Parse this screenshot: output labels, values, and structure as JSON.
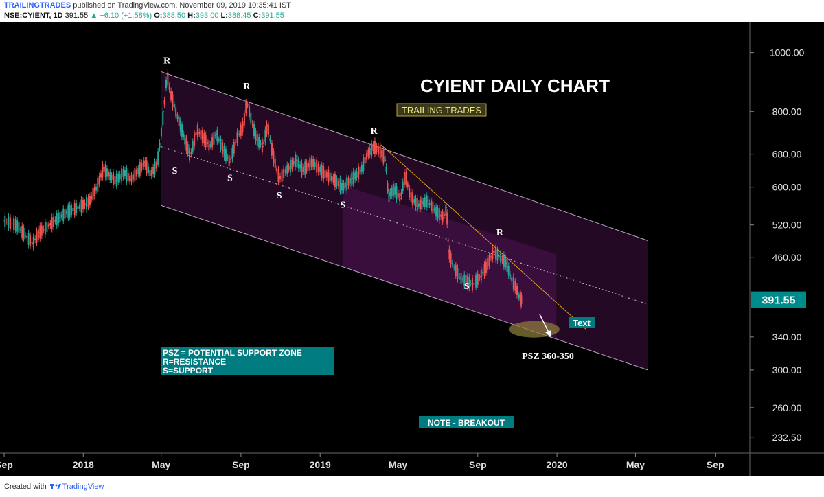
{
  "header": {
    "publisher_brand": "TRAILINGTRADES",
    "publisher_text": "published on TradingView.com, November 09, 2019 10:35:41 IST",
    "symbol": "NSE:CYIENT, 1D",
    "last": "391.55",
    "change_arrow": "▲",
    "change": "+6.10 (+1.58%)",
    "open_label": "O:",
    "open": "388.50",
    "high_label": "H:",
    "high": "393.00",
    "low_label": "L:",
    "low": "388.45",
    "close_label": "C:",
    "close": "391.55"
  },
  "chart_data": {
    "type": "line",
    "title": "CYIENT DAILY CHART",
    "subtitle": "TRAILING TRADES",
    "symbol": "NSE:CYIENT",
    "interval": "1D",
    "y_scale": "log",
    "ylim": [
      220,
      1100
    ],
    "y_ticks": [
      "1000.00",
      "800.00",
      "680.00",
      "600.00",
      "520.00",
      "460.00",
      "340.00",
      "300.00",
      "260.00",
      "232.50"
    ],
    "y_tick_values": [
      1000,
      800,
      680,
      600,
      520,
      460,
      340,
      300,
      260,
      232.5
    ],
    "x_ticks": [
      "Sep",
      "2018",
      "May",
      "Sep",
      "2019",
      "May",
      "Sep",
      "2020",
      "May",
      "Sep"
    ],
    "x_tick_dates": [
      "2017-09",
      "2018-01",
      "2018-05",
      "2018-09",
      "2019-01",
      "2019-05",
      "2019-09",
      "2020-01",
      "2020-05",
      "2020-09"
    ],
    "xlim": [
      "2017-09-01",
      "2020-10-20"
    ],
    "last_price_label": "391.55",
    "last_price": 391.55,
    "series": [
      {
        "values": [
          {
            "x": "2017-09-01",
            "y": 528
          },
          {
            "x": "2017-09-20",
            "y": 520
          },
          {
            "x": "2017-10-05",
            "y": 498
          },
          {
            "x": "2017-10-15",
            "y": 485
          },
          {
            "x": "2017-10-25",
            "y": 505
          },
          {
            "x": "2017-11-10",
            "y": 520
          },
          {
            "x": "2017-11-25",
            "y": 535
          },
          {
            "x": "2017-12-10",
            "y": 548
          },
          {
            "x": "2017-12-25",
            "y": 556
          },
          {
            "x": "2018-01-10",
            "y": 568
          },
          {
            "x": "2018-01-22",
            "y": 600
          },
          {
            "x": "2018-02-01",
            "y": 645
          },
          {
            "x": "2018-02-10",
            "y": 628
          },
          {
            "x": "2018-02-20",
            "y": 615
          },
          {
            "x": "2018-03-05",
            "y": 635
          },
          {
            "x": "2018-03-15",
            "y": 618
          },
          {
            "x": "2018-03-28",
            "y": 640
          },
          {
            "x": "2018-04-05",
            "y": 660
          },
          {
            "x": "2018-04-15",
            "y": 630
          },
          {
            "x": "2018-04-25",
            "y": 655
          },
          {
            "x": "2018-04-30",
            "y": 720
          },
          {
            "x": "2018-05-05",
            "y": 800
          },
          {
            "x": "2018-05-10",
            "y": 920
          },
          {
            "x": "2018-05-15",
            "y": 860
          },
          {
            "x": "2018-05-25",
            "y": 790
          },
          {
            "x": "2018-06-01",
            "y": 750
          },
          {
            "x": "2018-06-10",
            "y": 700
          },
          {
            "x": "2018-06-15",
            "y": 675
          },
          {
            "x": "2018-06-25",
            "y": 745
          },
          {
            "x": "2018-07-05",
            "y": 725
          },
          {
            "x": "2018-07-15",
            "y": 700
          },
          {
            "x": "2018-07-25",
            "y": 735
          },
          {
            "x": "2018-08-05",
            "y": 690
          },
          {
            "x": "2018-08-15",
            "y": 660
          },
          {
            "x": "2018-08-25",
            "y": 720
          },
          {
            "x": "2018-09-05",
            "y": 760
          },
          {
            "x": "2018-09-10",
            "y": 830
          },
          {
            "x": "2018-09-15",
            "y": 790
          },
          {
            "x": "2018-09-25",
            "y": 720
          },
          {
            "x": "2018-10-05",
            "y": 700
          },
          {
            "x": "2018-10-12",
            "y": 760
          },
          {
            "x": "2018-10-20",
            "y": 680
          },
          {
            "x": "2018-10-30",
            "y": 620
          },
          {
            "x": "2018-11-10",
            "y": 640
          },
          {
            "x": "2018-11-25",
            "y": 665
          },
          {
            "x": "2018-12-05",
            "y": 640
          },
          {
            "x": "2018-12-20",
            "y": 660
          },
          {
            "x": "2019-01-05",
            "y": 635
          },
          {
            "x": "2019-01-20",
            "y": 620
          },
          {
            "x": "2019-02-05",
            "y": 600
          },
          {
            "x": "2019-02-20",
            "y": 620
          },
          {
            "x": "2019-03-05",
            "y": 640
          },
          {
            "x": "2019-03-15",
            "y": 680
          },
          {
            "x": "2019-03-25",
            "y": 700
          },
          {
            "x": "2019-04-05",
            "y": 685
          },
          {
            "x": "2019-04-12",
            "y": 665
          },
          {
            "x": "2019-04-16",
            "y": 580
          },
          {
            "x": "2019-04-25",
            "y": 595
          },
          {
            "x": "2019-05-05",
            "y": 575
          },
          {
            "x": "2019-05-12",
            "y": 630
          },
          {
            "x": "2019-05-20",
            "y": 580
          },
          {
            "x": "2019-06-01",
            "y": 560
          },
          {
            "x": "2019-06-15",
            "y": 570
          },
          {
            "x": "2019-06-30",
            "y": 545
          },
          {
            "x": "2019-07-10",
            "y": 535
          },
          {
            "x": "2019-07-15",
            "y": 555
          },
          {
            "x": "2019-07-18",
            "y": 470
          },
          {
            "x": "2019-07-25",
            "y": 445
          },
          {
            "x": "2019-08-05",
            "y": 425
          },
          {
            "x": "2019-08-15",
            "y": 420
          },
          {
            "x": "2019-08-25",
            "y": 415
          },
          {
            "x": "2019-09-05",
            "y": 428
          },
          {
            "x": "2019-09-15",
            "y": 445
          },
          {
            "x": "2019-09-25",
            "y": 470
          },
          {
            "x": "2019-10-05",
            "y": 460
          },
          {
            "x": "2019-10-15",
            "y": 450
          },
          {
            "x": "2019-10-22",
            "y": 425
          },
          {
            "x": "2019-10-30",
            "y": 410
          },
          {
            "x": "2019-11-05",
            "y": 392
          },
          {
            "x": "2019-11-08",
            "y": 391.55
          }
        ]
      }
    ],
    "annotations": {
      "resistance_marker": "R",
      "support_marker": "S",
      "resistance_points": [
        {
          "x": "2018-05-10",
          "y": 960
        },
        {
          "x": "2018-09-10",
          "y": 870
        },
        {
          "x": "2019-03-25",
          "y": 735
        },
        {
          "x": "2019-10-05",
          "y": 500
        }
      ],
      "support_points": [
        {
          "x": "2018-05-22",
          "y": 632
        },
        {
          "x": "2018-08-15",
          "y": 615
        },
        {
          "x": "2018-10-30",
          "y": 575
        },
        {
          "x": "2019-02-05",
          "y": 555
        },
        {
          "x": "2019-08-15",
          "y": 408
        }
      ],
      "legend_lines": [
        "PSZ = POTENTIAL SUPPORT ZONE",
        "R=RESISTANCE",
        "S=SUPPORT"
      ],
      "psz_label": "PSZ 360-350",
      "note_label": "NOTE - BREAKOUT",
      "text_label": "Text"
    },
    "channel": {
      "start": "2018-05-01",
      "end": "2020-05-20",
      "upper_start": 930,
      "upper_end": 490,
      "middle_start": 700,
      "middle_end": 385,
      "lower_start": 560,
      "lower_end": 300
    },
    "trendline": {
      "x1": "2019-04-05",
      "y1": 705,
      "x2": "2020-02-15",
      "y2": 350
    },
    "psz_zone": {
      "x": "2019-12-01",
      "y": 350
    },
    "colors": {
      "background": "#000000",
      "up": "#26a69a",
      "down": "#ef5350",
      "channel_fill": "#2a0a2a",
      "trendline": "#d4a017",
      "legend_bg": "#007c80",
      "subtitle_border": "#b5a642",
      "last_price_bg": "#008b8b"
    }
  },
  "footer": {
    "created_with": "Created with",
    "brand": "TradingView"
  }
}
